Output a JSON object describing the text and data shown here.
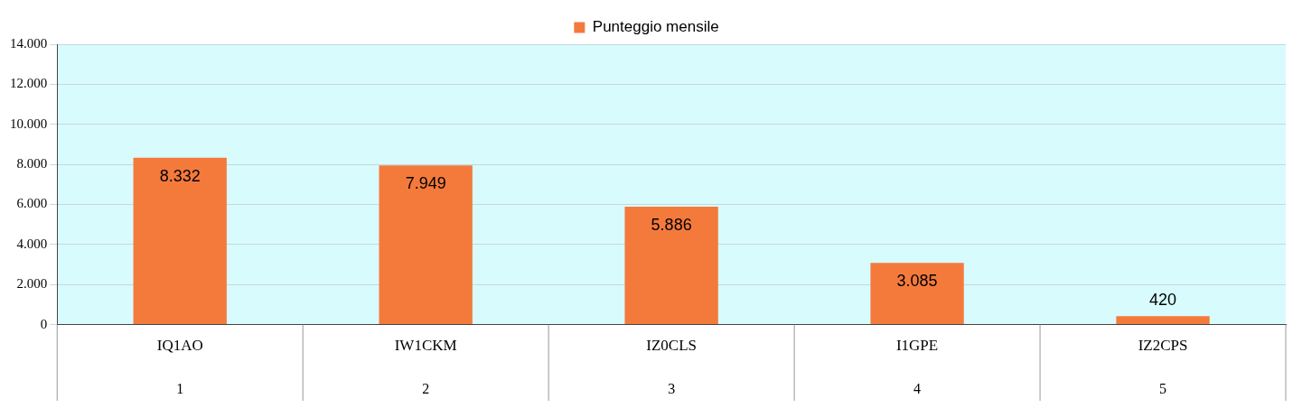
{
  "chart_data": {
    "type": "bar",
    "categories": [
      "IQ1AO",
      "IW1CKM",
      "IZ0CLS",
      "I1GPE",
      "IZ2CPS"
    ],
    "series": [
      {
        "name": "Punteggio mensile",
        "color": "#f47a3c",
        "values": [
          8332,
          7949,
          5886,
          3085,
          420
        ],
        "value_labels": [
          "8.332",
          "7.949",
          "5.886",
          "3.085",
          "420"
        ]
      }
    ],
    "annotations": [
      "1",
      "2",
      "3",
      "4",
      "5"
    ],
    "ylim": [
      0,
      14000
    ],
    "yticks": [
      {
        "value": 0,
        "label": "0"
      },
      {
        "value": 2000,
        "label": "2.000"
      },
      {
        "value": 4000,
        "label": "4.000"
      },
      {
        "value": 6000,
        "label": "6.000"
      },
      {
        "value": 8000,
        "label": "8.000"
      },
      {
        "value": 10000,
        "label": "10.000"
      },
      {
        "value": 12000,
        "label": "12.000"
      },
      {
        "value": 14000,
        "label": "14.000"
      }
    ],
    "grid": "y",
    "legend": "top"
  }
}
